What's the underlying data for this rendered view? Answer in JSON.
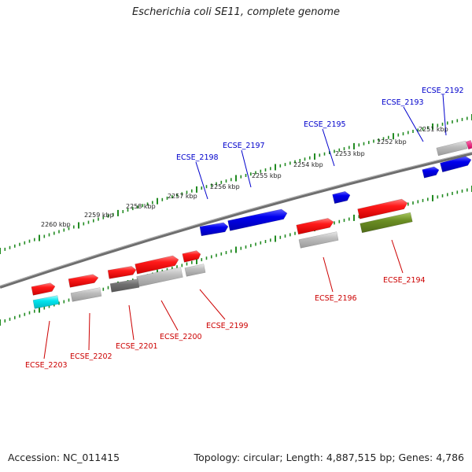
{
  "title": "Escherichia coli SE11, complete genome",
  "footer": {
    "accession": "Accession: NC_011415",
    "topology": "Topology: circular; Length: 4,887,515 bp; Genes: 4,786"
  },
  "colors": {
    "forward_gene": "#0000ee",
    "reverse_gene": "#ee0000",
    "grey_feature": "#b8b8b8",
    "dark_grey_feature": "#707070",
    "cyan_feature": "#00e5ee",
    "olive_feature": "#6b8e23",
    "magenta_feature": "#ee0077",
    "tick": "#228b22",
    "backbone": "#777777",
    "forward_label": "#0000cc",
    "reverse_label": "#cc0000"
  },
  "scale_labels": [
    "2251 kbp",
    "2252 kbp",
    "2253 kbp",
    "2254 kbp",
    "2255 kbp",
    "2256 kbp",
    "2257 kbp",
    "2258 kbp",
    "2259 kbp",
    "2260 kbp"
  ],
  "forward_genes": [
    "ECSE_2192",
    "ECSE_2193",
    "ECSE_2195",
    "ECSE_2197",
    "ECSE_2198"
  ],
  "reverse_genes": [
    "ECSE_2194",
    "ECSE_2196",
    "ECSE_2199",
    "ECSE_2200",
    "ECSE_2201",
    "ECSE_2202",
    "ECSE_2203"
  ]
}
